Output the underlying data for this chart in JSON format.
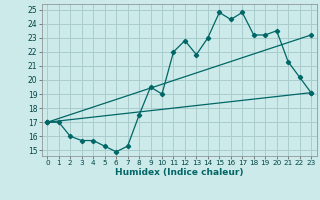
{
  "xlabel": "Humidex (Indice chaleur)",
  "bg_color": "#cceaea",
  "grid_color": "#aacccc",
  "line_color": "#006666",
  "xlim": [
    -0.5,
    23.5
  ],
  "ylim": [
    14.6,
    25.4
  ],
  "xticks": [
    0,
    1,
    2,
    3,
    4,
    5,
    6,
    7,
    8,
    9,
    10,
    11,
    12,
    13,
    14,
    15,
    16,
    17,
    18,
    19,
    20,
    21,
    22,
    23
  ],
  "yticks": [
    15,
    16,
    17,
    18,
    19,
    20,
    21,
    22,
    23,
    24,
    25
  ],
  "line1_x": [
    0,
    1,
    2,
    3,
    4,
    5,
    6,
    7,
    8,
    9,
    10,
    11,
    12,
    13,
    14,
    15,
    16,
    17,
    18,
    19,
    20,
    21,
    22,
    23
  ],
  "line1_y": [
    17,
    17,
    16,
    15.7,
    15.7,
    15.3,
    14.9,
    15.3,
    17.5,
    19.5,
    19,
    22,
    22.8,
    21.8,
    23,
    24.8,
    24.3,
    24.8,
    23.2,
    23.2,
    23.5,
    21.3,
    20.2,
    19.1
  ],
  "line2_x": [
    0,
    23
  ],
  "line2_y": [
    17,
    19.1
  ],
  "line3_x": [
    0,
    23
  ],
  "line3_y": [
    17,
    23.2
  ]
}
